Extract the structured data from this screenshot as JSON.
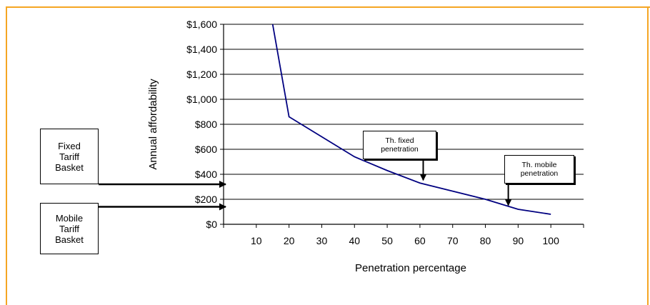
{
  "chart_data": {
    "type": "line",
    "title": "",
    "xlabel": "Penetration percentage",
    "ylabel": "Annual affordability",
    "xlim": [
      0,
      110
    ],
    "ylim": [
      0,
      1600
    ],
    "x_ticks": [
      10,
      20,
      30,
      40,
      50,
      60,
      70,
      80,
      90,
      100
    ],
    "y_ticks": [
      0,
      200,
      400,
      600,
      800,
      1000,
      1200,
      1400,
      1600
    ],
    "y_tick_labels": [
      "$0",
      "$200",
      "$400",
      "$600",
      "$800",
      "$1,000",
      "$1,200",
      "$1,400",
      "$1,600"
    ],
    "grid": "horizontal",
    "series": [
      {
        "x": [
          15,
          20,
          30,
          40,
          50,
          60,
          70,
          80,
          90,
          100
        ],
        "y": [
          1600,
          860,
          700,
          540,
          430,
          330,
          265,
          200,
          120,
          80
        ]
      }
    ],
    "annotations": [
      {
        "text": "Th. fixed\npenetration",
        "x": 61,
        "y": 330
      },
      {
        "text": "Th. mobile\npenetration",
        "x": 87,
        "y": 140
      }
    ],
    "callouts": [
      {
        "text": "Fixed\nTariff\nBasket",
        "y": 320
      },
      {
        "text": "Mobile\nTariff\nBasket",
        "y": 140
      }
    ],
    "colors": {
      "line": "#000080",
      "frame": "#f5a623",
      "grid": "#000000"
    }
  }
}
